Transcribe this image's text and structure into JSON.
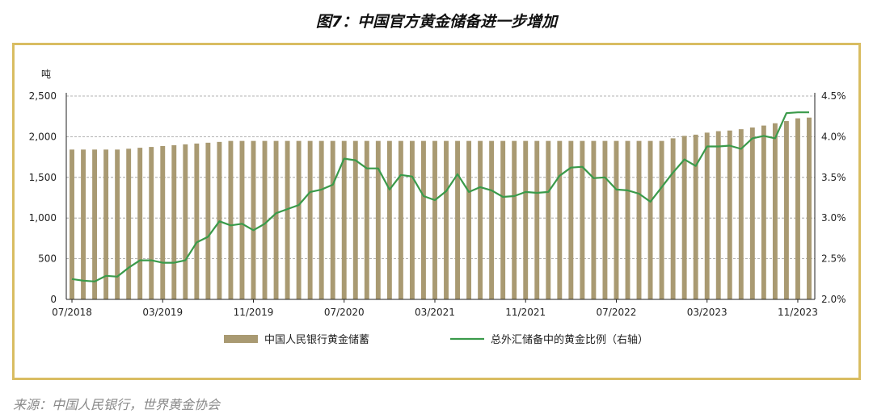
{
  "title": "图7：中国官方黄金储备进一步增加",
  "source": "来源：中国人民银行，世界黄金协会",
  "colors": {
    "bars": "#a99a72",
    "line": "#3a9a4a",
    "border": "#d9bd62"
  },
  "chart_data": {
    "type": "bar+line",
    "y_unit": "吨",
    "ylim": [
      0,
      2500
    ],
    "yticks": [
      "0",
      "500",
      "1,000",
      "1,500",
      "2,000",
      "2,500"
    ],
    "y2lim": [
      2.0,
      4.5
    ],
    "y2ticks": [
      "2.0%",
      "2.5%",
      "3.0%",
      "3.5%",
      "4.0%",
      "4.5%"
    ],
    "xticks": [
      "07/2018",
      "03/2019",
      "11/2019",
      "07/2020",
      "03/2021",
      "11/2021",
      "07/2022",
      "03/2023",
      "11/2023"
    ],
    "legend": [
      {
        "name": "中国人民银行黄金储蓄",
        "kind": "bar"
      },
      {
        "name": "总外汇储备中的黄金比例（右轴）",
        "kind": "line"
      }
    ],
    "categories": [
      "07/2018",
      "08/2018",
      "09/2018",
      "10/2018",
      "11/2018",
      "12/2018",
      "01/2019",
      "02/2019",
      "03/2019",
      "04/2019",
      "05/2019",
      "06/2019",
      "07/2019",
      "08/2019",
      "09/2019",
      "10/2019",
      "11/2019",
      "12/2019",
      "01/2020",
      "02/2020",
      "03/2020",
      "04/2020",
      "05/2020",
      "06/2020",
      "07/2020",
      "08/2020",
      "09/2020",
      "10/2020",
      "11/2020",
      "12/2020",
      "01/2021",
      "02/2021",
      "03/2021",
      "04/2021",
      "05/2021",
      "06/2021",
      "07/2021",
      "08/2021",
      "09/2021",
      "10/2021",
      "11/2021",
      "12/2021",
      "01/2022",
      "02/2022",
      "03/2022",
      "04/2022",
      "05/2022",
      "06/2022",
      "07/2022",
      "08/2022",
      "09/2022",
      "10/2022",
      "11/2022",
      "12/2022",
      "01/2023",
      "02/2023",
      "03/2023",
      "04/2023",
      "05/2023",
      "06/2023",
      "07/2023",
      "08/2023",
      "09/2023",
      "10/2023",
      "11/2023",
      "12/2023"
    ],
    "series": [
      {
        "name": "中国人民银行黄金储蓄",
        "kind": "bar",
        "axis": "left",
        "values": [
          1842,
          1842,
          1842,
          1842,
          1842,
          1852,
          1864,
          1874,
          1885,
          1895,
          1906,
          1916,
          1926,
          1936,
          1948,
          1948,
          1948,
          1948,
          1948,
          1948,
          1948,
          1948,
          1948,
          1948,
          1948,
          1948,
          1948,
          1948,
          1948,
          1948,
          1948,
          1948,
          1948,
          1948,
          1948,
          1948,
          1948,
          1948,
          1948,
          1948,
          1948,
          1948,
          1948,
          1948,
          1948,
          1948,
          1948,
          1948,
          1948,
          1948,
          1948,
          1948,
          1948,
          1980,
          2010,
          2025,
          2050,
          2068,
          2076,
          2092,
          2113,
          2137,
          2165,
          2192,
          2226,
          2235
        ]
      },
      {
        "name": "总外汇储备中的黄金比例（右轴）",
        "kind": "line",
        "axis": "right",
        "values": [
          2.25,
          2.23,
          2.22,
          2.29,
          2.28,
          2.39,
          2.48,
          2.48,
          2.45,
          2.45,
          2.48,
          2.7,
          2.77,
          2.96,
          2.91,
          2.93,
          2.85,
          2.93,
          3.06,
          3.11,
          3.16,
          3.32,
          3.35,
          3.41,
          3.73,
          3.71,
          3.61,
          3.61,
          3.35,
          3.53,
          3.51,
          3.27,
          3.22,
          3.33,
          3.54,
          3.32,
          3.38,
          3.34,
          3.26,
          3.27,
          3.32,
          3.31,
          3.32,
          3.52,
          3.62,
          3.63,
          3.49,
          3.5,
          3.35,
          3.34,
          3.3,
          3.2,
          3.38,
          3.56,
          3.72,
          3.64,
          3.88,
          3.88,
          3.89,
          3.85,
          3.98,
          4.01,
          3.98,
          4.29,
          4.3,
          4.3
        ]
      }
    ]
  }
}
